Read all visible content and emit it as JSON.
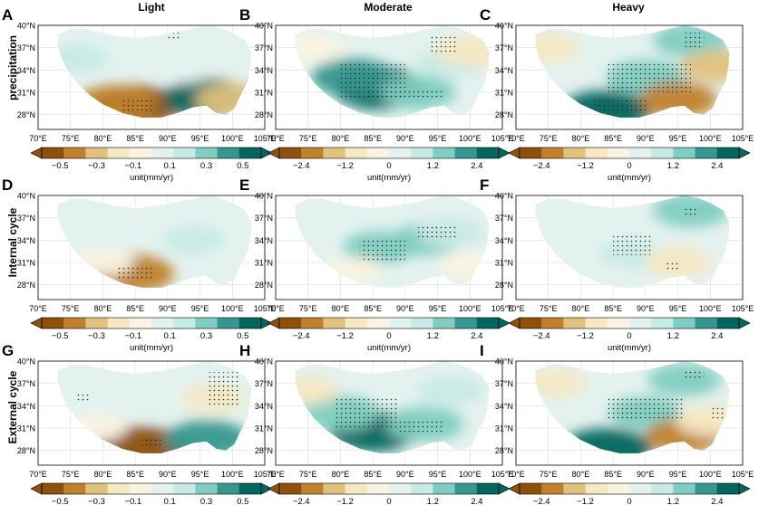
{
  "figure": {
    "columns": [
      "Light",
      "Moderate",
      "Heavy"
    ],
    "rows": [
      "precipitation",
      "Internal cycle",
      "External cycle"
    ],
    "panel_letters": [
      "A",
      "B",
      "C",
      "D",
      "E",
      "F",
      "G",
      "H",
      "I"
    ]
  },
  "chart_data": {
    "type": "heatmap",
    "description_axes": {
      "x_ticks": [
        "70°E",
        "75°E",
        "80°E",
        "85°E",
        "90°E",
        "95°E",
        "100°E",
        "105°E"
      ],
      "y_ticks": [
        "40°N",
        "37°N",
        "34°N",
        "31°N",
        "28°N"
      ],
      "xlim": [
        70,
        105
      ],
      "ylim": [
        26,
        40
      ]
    },
    "colorbars": {
      "light": {
        "ticks": [
          "−0.5",
          "−0.3",
          "−0.1",
          "0.1",
          "0.3",
          "0.5"
        ],
        "range": [
          -0.6,
          0.6
        ],
        "unit_label": "unit(mm/yr)"
      },
      "moderate_heavy": {
        "ticks": [
          "−2.4",
          "−1.2",
          "0",
          "1.2",
          "2.4"
        ],
        "range": [
          -3.0,
          3.0
        ],
        "unit_label": "unit(mm/yr)"
      }
    },
    "colors": {
      "brown_dark": "#8c510a",
      "brown": "#bf812d",
      "tan": "#dfc27d",
      "beige": "#f6e8c3",
      "cream": "#faf3e3",
      "pale_teal": "#e4f2ef",
      "mint": "#c7eae5",
      "teal_light": "#80cdc1",
      "teal": "#35978f",
      "teal_dark": "#01665e"
    },
    "panels": [
      {
        "id": "A",
        "row": "precipitation",
        "column": "Light",
        "colorbar": "light",
        "patterns": [
          {
            "lon": 85,
            "lat": 29.2,
            "v": -0.55
          },
          {
            "lon": 82,
            "lat": 29.5,
            "v": -0.4
          },
          {
            "lon": 96,
            "lat": 30.2,
            "v": 0.5
          },
          {
            "lon": 100,
            "lat": 30,
            "v": -0.3
          },
          {
            "lon": 76,
            "lat": 35.5,
            "v": 0.12
          },
          {
            "lon": 92,
            "lat": 34,
            "v": 0.1
          }
        ]
      },
      {
        "id": "B",
        "row": "precipitation",
        "column": "Moderate",
        "colorbar": "moderate_heavy",
        "patterns": [
          {
            "lon": 86,
            "lat": 31.5,
            "v": 2.9
          },
          {
            "lon": 82,
            "lat": 33,
            "v": 2.2
          },
          {
            "lon": 92,
            "lat": 31,
            "v": 1.6
          },
          {
            "lon": 97,
            "lat": 35,
            "v": 1.0
          },
          {
            "lon": 100,
            "lat": 36.5,
            "v": -1.2
          },
          {
            "lon": 76,
            "lat": 37,
            "v": -0.5
          }
        ]
      },
      {
        "id": "C",
        "row": "precipitation",
        "column": "Heavy",
        "colorbar": "moderate_heavy",
        "patterns": [
          {
            "lon": 84,
            "lat": 28.5,
            "v": 2.8
          },
          {
            "lon": 90,
            "lat": 33,
            "v": 1.8
          },
          {
            "lon": 97,
            "lat": 38,
            "v": 1.6
          },
          {
            "lon": 95,
            "lat": 30,
            "v": -1.8
          },
          {
            "lon": 101,
            "lat": 34.5,
            "v": -1.4
          },
          {
            "lon": 75,
            "lat": 37,
            "v": -0.8
          }
        ]
      },
      {
        "id": "D",
        "row": "Internal cycle",
        "column": "Light",
        "colorbar": "light",
        "patterns": [
          {
            "lon": 84.5,
            "lat": 29.5,
            "v": -0.45
          },
          {
            "lon": 80,
            "lat": 31,
            "v": -0.12
          },
          {
            "lon": 94,
            "lat": 34,
            "v": 0.12
          },
          {
            "lon": 99,
            "lat": 31,
            "v": 0.1
          }
        ]
      },
      {
        "id": "E",
        "row": "Internal cycle",
        "column": "Moderate",
        "colorbar": "moderate_heavy",
        "patterns": [
          {
            "lon": 86,
            "lat": 33,
            "v": 1.4
          },
          {
            "lon": 93,
            "lat": 34,
            "v": 1.2
          },
          {
            "lon": 97,
            "lat": 35,
            "v": 0.8
          },
          {
            "lon": 82,
            "lat": 30,
            "v": -0.4
          },
          {
            "lon": 100,
            "lat": 30.5,
            "v": -0.5
          }
        ]
      },
      {
        "id": "F",
        "row": "Internal cycle",
        "column": "Heavy",
        "colorbar": "moderate_heavy",
        "patterns": [
          {
            "lon": 97,
            "lat": 38,
            "v": 1.6
          },
          {
            "lon": 88,
            "lat": 32,
            "v": 0.8
          },
          {
            "lon": 95,
            "lat": 31,
            "v": -1.0
          },
          {
            "lon": 84,
            "lat": 29,
            "v": 0.4
          }
        ]
      },
      {
        "id": "G",
        "row": "External cycle",
        "column": "Light",
        "colorbar": "light",
        "patterns": [
          {
            "lon": 86,
            "lat": 28.5,
            "v": -0.55
          },
          {
            "lon": 96,
            "lat": 29.5,
            "v": 0.45
          },
          {
            "lon": 97,
            "lat": 35,
            "v": -0.15
          },
          {
            "lon": 79,
            "lat": 31,
            "v": -0.1
          },
          {
            "lon": 88,
            "lat": 34,
            "v": 0.1
          }
        ]
      },
      {
        "id": "H",
        "row": "External cycle",
        "column": "Moderate",
        "colorbar": "moderate_heavy",
        "patterns": [
          {
            "lon": 85,
            "lat": 30.5,
            "v": 2.6
          },
          {
            "lon": 80,
            "lat": 33,
            "v": 1.8
          },
          {
            "lon": 93,
            "lat": 31.5,
            "v": 1.8
          },
          {
            "lon": 97,
            "lat": 36,
            "v": 0.8
          },
          {
            "lon": 75,
            "lat": 36,
            "v": -0.6
          }
        ]
      },
      {
        "id": "I",
        "row": "External cycle",
        "column": "Heavy",
        "colorbar": "moderate_heavy",
        "patterns": [
          {
            "lon": 84,
            "lat": 28.2,
            "v": 2.8
          },
          {
            "lon": 90,
            "lat": 33,
            "v": 1.4
          },
          {
            "lon": 96,
            "lat": 37.5,
            "v": 1.4
          },
          {
            "lon": 96,
            "lat": 30,
            "v": -1.8
          },
          {
            "lon": 100,
            "lat": 32,
            "v": -1.2
          },
          {
            "lon": 76,
            "lat": 37,
            "v": -0.6
          }
        ]
      }
    ]
  }
}
